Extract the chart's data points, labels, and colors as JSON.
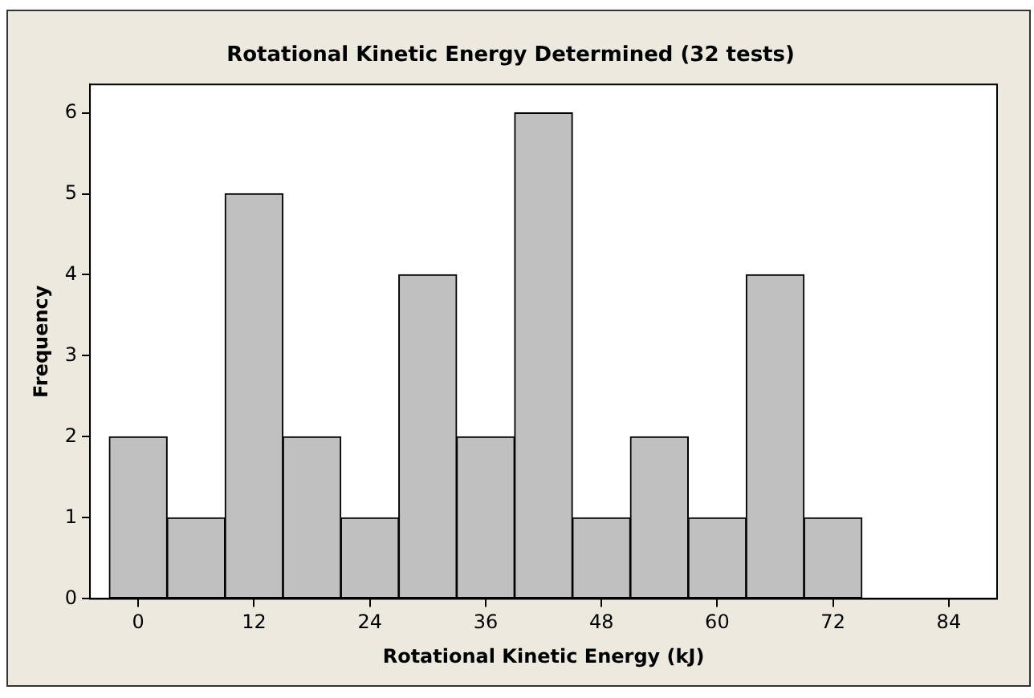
{
  "chart_data": {
    "type": "histogram",
    "title": "Rotational Kinetic Energy Determined (32 tests)",
    "xlabel": "Rotational Kinetic Energy (kJ)",
    "ylabel": "Frequency",
    "bins": [
      -3,
      3,
      9,
      15,
      21,
      27,
      33,
      39,
      45,
      51,
      57,
      63,
      69,
      75,
      81,
      87
    ],
    "values": [
      2,
      1,
      5,
      2,
      1,
      4,
      2,
      6,
      1,
      2,
      1,
      4,
      1,
      0,
      0
    ],
    "color": "#c0c0c0",
    "xlim": [
      -5,
      89
    ],
    "xticks": [
      0,
      12,
      24,
      36,
      48,
      60,
      72,
      84
    ],
    "ylim": [
      0,
      6.35
    ],
    "yticks": [
      0,
      1,
      2,
      3,
      4,
      5,
      6
    ],
    "grid": false,
    "legend": false
  }
}
